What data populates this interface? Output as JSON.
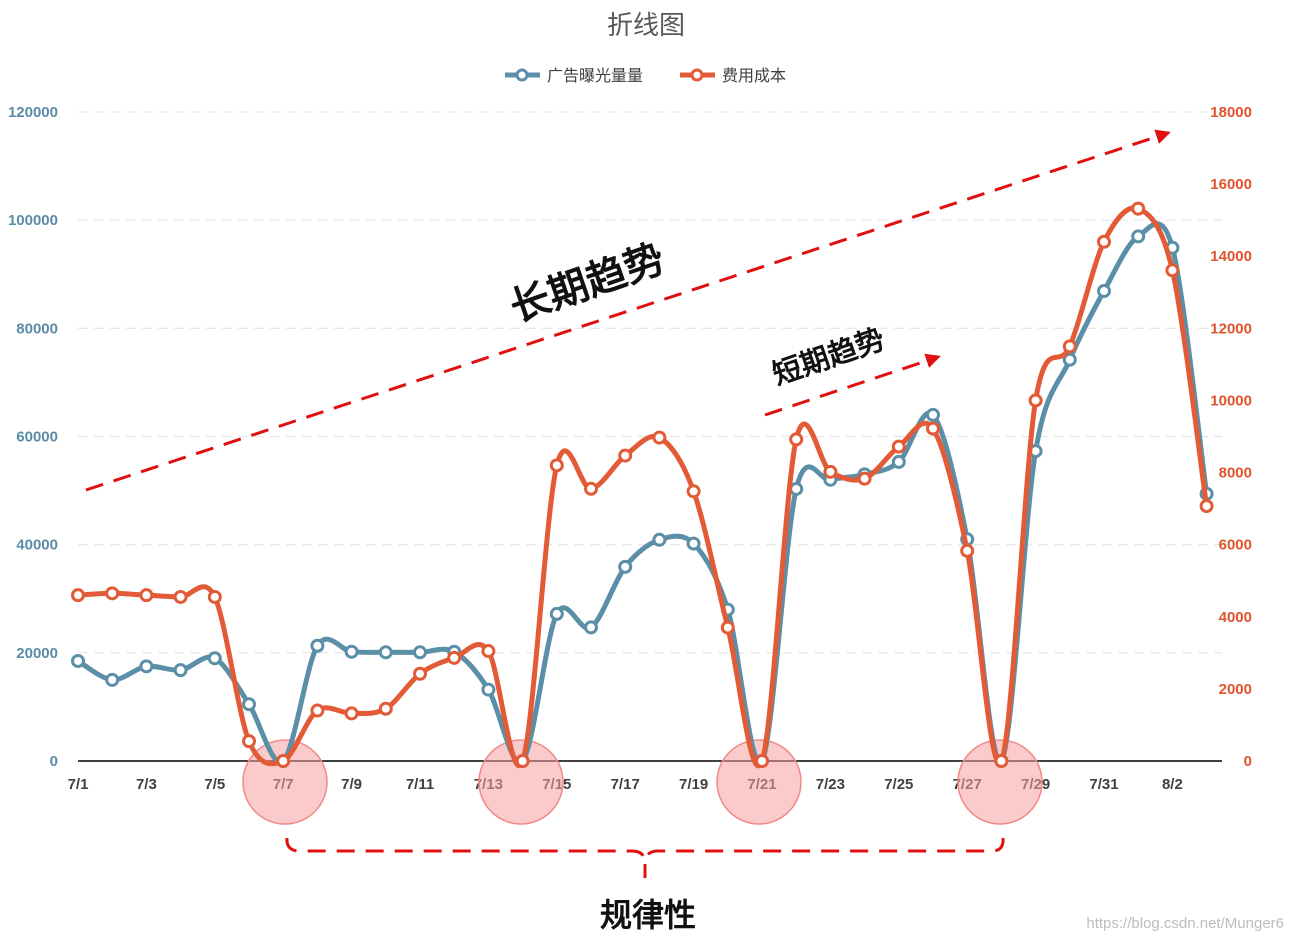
{
  "chart_data": {
    "type": "line",
    "title": "折线图",
    "categories": [
      "7/1",
      "7/2",
      "7/3",
      "7/4",
      "7/5",
      "7/6",
      "7/7",
      "7/8",
      "7/9",
      "7/10",
      "7/11",
      "7/12",
      "7/13",
      "7/14",
      "7/15",
      "7/16",
      "7/17",
      "7/18",
      "7/19",
      "7/20",
      "7/21",
      "7/22",
      "7/23",
      "7/24",
      "7/25",
      "7/26",
      "7/27",
      "7/28",
      "7/29",
      "7/30",
      "7/31",
      "8/1",
      "8/2",
      "8/3"
    ],
    "x_tick_labels": [
      "7/1",
      "7/3",
      "7/5",
      "7/7",
      "7/9",
      "7/11",
      "7/13",
      "7/15",
      "7/17",
      "7/19",
      "7/21",
      "7/23",
      "7/25",
      "7/27",
      "7/29",
      "7/31",
      "8/2"
    ],
    "series": [
      {
        "name": "广告曝光量量",
        "axis": "left",
        "color": "#5b8fa8",
        "values": [
          18500,
          15000,
          17500,
          16800,
          19000,
          10500,
          0,
          21300,
          20200,
          20100,
          20100,
          20200,
          13200,
          0,
          27200,
          24700,
          35900,
          40900,
          40200,
          28000,
          0,
          50300,
          52000,
          53000,
          55300,
          64000,
          41000,
          0,
          57300,
          74200,
          86900,
          97000,
          94900,
          49400
        ]
      },
      {
        "name": "费用成本",
        "axis": "right",
        "color": "#e35a36",
        "values": [
          4600,
          4650,
          4600,
          4550,
          4550,
          550,
          0,
          1400,
          1320,
          1450,
          2420,
          2860,
          3050,
          0,
          8200,
          7550,
          8470,
          8970,
          7480,
          3700,
          0,
          8920,
          8020,
          7830,
          8720,
          9220,
          5830,
          0,
          10000,
          11500,
          14400,
          15320,
          13610,
          7070
        ]
      }
    ],
    "y_left": {
      "ylim": [
        0,
        120000
      ],
      "ticks": [
        "0",
        "20000",
        "40000",
        "60000",
        "80000",
        "100000",
        "120000"
      ]
    },
    "y_right": {
      "ylim": [
        0,
        18000
      ],
      "ticks": [
        "0",
        "2000",
        "4000",
        "6000",
        "8000",
        "10000",
        "12000",
        "14000",
        "16000",
        "18000"
      ]
    },
    "legend": "top-center",
    "grid": "horizontal-dashed",
    "annotations": {
      "long_term": "长期趋势",
      "short_term": "短期趋势",
      "regularity": "规律性"
    }
  },
  "watermark": "https://blog.csdn.net/Munger6"
}
